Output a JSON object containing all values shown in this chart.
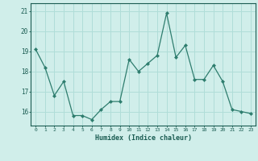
{
  "x": [
    0,
    1,
    2,
    3,
    4,
    5,
    6,
    7,
    8,
    9,
    10,
    11,
    12,
    13,
    14,
    15,
    16,
    17,
    18,
    19,
    20,
    21,
    22,
    23
  ],
  "y": [
    19.1,
    18.2,
    16.8,
    17.5,
    15.8,
    15.8,
    15.6,
    16.1,
    16.5,
    16.5,
    18.6,
    18.0,
    18.4,
    18.8,
    20.9,
    18.7,
    19.3,
    17.6,
    17.6,
    18.3,
    17.5,
    16.1,
    16.0,
    15.9
  ],
  "line_color": "#2e7d6e",
  "marker": "D",
  "marker_size": 2.0,
  "bg_color": "#d0eeea",
  "grid_color": "#b0ddd8",
  "xlabel": "Humidex (Indice chaleur)",
  "xlabel_color": "#1a5c52",
  "tick_color": "#1a5c52",
  "spine_color": "#1a5c52",
  "ylim": [
    15.3,
    21.4
  ],
  "xlim": [
    -0.5,
    23.5
  ],
  "yticks": [
    16,
    17,
    18,
    19,
    20,
    21
  ],
  "xticks": [
    0,
    1,
    2,
    3,
    4,
    5,
    6,
    7,
    8,
    9,
    10,
    11,
    12,
    13,
    14,
    15,
    16,
    17,
    18,
    19,
    20,
    21,
    22,
    23
  ],
  "figsize": [
    3.2,
    2.0
  ],
  "dpi": 100
}
